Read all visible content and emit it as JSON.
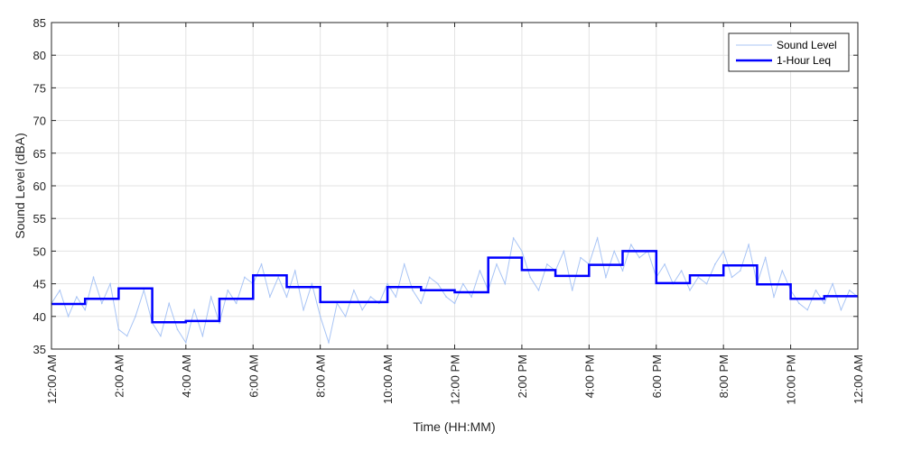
{
  "chart_data": {
    "type": "line",
    "title": "",
    "xlabel": "Time (HH:MM)",
    "ylabel": "Sound Level (dBA)",
    "xlim": [
      0,
      24
    ],
    "ylim": [
      35,
      85
    ],
    "x_ticks": [
      0,
      2,
      4,
      6,
      8,
      10,
      12,
      14,
      16,
      18,
      20,
      22,
      24
    ],
    "x_tick_labels": [
      "12:00 AM",
      "2:00 AM",
      "4:00 AM",
      "6:00 AM",
      "8:00 AM",
      "10:00 AM",
      "12:00 PM",
      "2:00 PM",
      "4:00 PM",
      "6:00 PM",
      "8:00 PM",
      "10:00 PM",
      "12:00 AM"
    ],
    "y_ticks": [
      35,
      40,
      45,
      50,
      55,
      60,
      65,
      70,
      75,
      80,
      85
    ],
    "y_tick_labels": [
      "35",
      "40",
      "45",
      "50",
      "55",
      "60",
      "65",
      "70",
      "75",
      "80",
      "85"
    ],
    "grid": true,
    "legend_position": "top-right",
    "series": [
      {
        "name": "Sound Level",
        "color": "#a8c4f5",
        "style": "thin-line",
        "x_unit": "hours since 12:00 AM",
        "x": [
          0,
          0.25,
          0.5,
          0.75,
          1,
          1.25,
          1.5,
          1.75,
          2,
          2.25,
          2.5,
          2.75,
          3,
          3.25,
          3.5,
          3.75,
          4,
          4.25,
          4.5,
          4.75,
          5,
          5.25,
          5.5,
          5.75,
          6,
          6.25,
          6.5,
          6.75,
          7,
          7.25,
          7.5,
          7.75,
          8,
          8.25,
          8.5,
          8.75,
          9,
          9.25,
          9.5,
          9.75,
          10,
          10.25,
          10.5,
          10.75,
          11,
          11.25,
          11.5,
          11.75,
          12,
          12.25,
          12.5,
          12.75,
          13,
          13.25,
          13.5,
          13.75,
          14,
          14.25,
          14.5,
          14.75,
          15,
          15.25,
          15.5,
          15.75,
          16,
          16.25,
          16.5,
          16.75,
          17,
          17.25,
          17.5,
          17.75,
          18,
          18.25,
          18.5,
          18.75,
          19,
          19.25,
          19.5,
          19.75,
          20,
          20.25,
          20.5,
          20.75,
          21,
          21.25,
          21.5,
          21.75,
          22,
          22.25,
          22.5,
          22.75,
          23,
          23.25,
          23.5,
          23.75,
          24
        ],
        "values": [
          42,
          44,
          40,
          43,
          41,
          46,
          42,
          45,
          38,
          37,
          40,
          44,
          39,
          37,
          42,
          38,
          36,
          41,
          37,
          43,
          39,
          44,
          42,
          46,
          45,
          48,
          43,
          46,
          43,
          47,
          41,
          45,
          40,
          36,
          42,
          40,
          44,
          41,
          43,
          42,
          45,
          43,
          48,
          44,
          42,
          46,
          45,
          43,
          42,
          45,
          43,
          47,
          44,
          48,
          45,
          52,
          50,
          46,
          44,
          48,
          47,
          50,
          44,
          49,
          48,
          52,
          46,
          50,
          47,
          51,
          49,
          50,
          46,
          48,
          45,
          47,
          44,
          46,
          45,
          48,
          50,
          46,
          47,
          51,
          45,
          49,
          43,
          47,
          44,
          42,
          41,
          44,
          42,
          45,
          41,
          44,
          43
        ]
      },
      {
        "name": "1-Hour Leq",
        "color": "#0000ff",
        "style": "step",
        "x_unit": "hours since 12:00 AM",
        "x": [
          0,
          1,
          2,
          3,
          4,
          5,
          6,
          7,
          8,
          9,
          10,
          11,
          12,
          13,
          14,
          15,
          16,
          17,
          18,
          19,
          20,
          21,
          22,
          23
        ],
        "values": [
          41.9,
          42.7,
          44.3,
          39.1,
          39.3,
          42.7,
          46.3,
          44.5,
          42.2,
          42.2,
          44.5,
          44.0,
          43.7,
          49.0,
          47.1,
          46.2,
          47.9,
          50.0,
          45.1,
          46.3,
          47.8,
          44.9,
          42.7,
          43.1
        ]
      }
    ]
  }
}
